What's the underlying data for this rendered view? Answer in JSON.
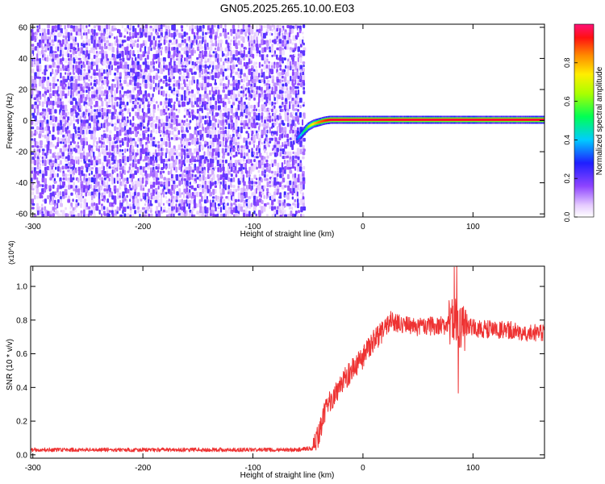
{
  "title": "GN05.2025.265.10.00.E03",
  "chart_data": [
    {
      "type": "heatmap",
      "xlabel": "Height of straight line (km)",
      "ylabel": "Frequency (Hz)",
      "xlim": [
        -302,
        165
      ],
      "ylim": [
        -62,
        62
      ],
      "xticks": [
        -300,
        -200,
        -100,
        0,
        100
      ],
      "xtick_labels": [
        "-300",
        "-200",
        "-100",
        "0",
        "100"
      ],
      "yticks": [
        -60,
        -40,
        -20,
        0,
        20,
        40,
        60
      ],
      "ytick_labels": [
        "-60",
        "-40",
        "-20",
        "0",
        "20",
        "40",
        "60"
      ],
      "colorbar": {
        "label": "Normalized spectral amplitude",
        "range": [
          0,
          1
        ],
        "ticks": [
          0.0,
          0.2,
          0.4,
          0.6,
          0.8
        ],
        "tick_labels": [
          "0.0",
          "0.2",
          "0.4",
          "0.6",
          "0.8"
        ]
      },
      "noise_region_x": [
        -302,
        -55
      ],
      "signal_track": {
        "x": [
          -60,
          -55,
          -50,
          -45,
          -40,
          -35,
          -30,
          -25,
          -20,
          -10,
          0,
          25,
          50,
          75,
          100,
          130,
          165
        ],
        "frequency": [
          -12,
          -8,
          -4,
          -2,
          -1,
          0,
          0.5,
          0.5,
          0.5,
          0.5,
          0.5,
          0.5,
          0.5,
          0.5,
          0.5,
          0.5,
          0.5
        ],
        "amplitude": [
          0.3,
          0.45,
          0.6,
          0.75,
          0.85,
          0.9,
          0.95,
          0.95,
          0.95,
          0.95,
          0.95,
          0.95,
          0.95,
          0.95,
          0.95,
          0.95,
          0.95
        ]
      },
      "grid": false
    },
    {
      "type": "line",
      "xlabel": "Height of straight line (km)",
      "ylabel": "SNR (10 * v/v)",
      "y_multiplier": "(x10^4)",
      "xlim": [
        -302,
        165
      ],
      "ylim": [
        -0.02,
        1.12
      ],
      "xticks": [
        -300,
        -200,
        -100,
        0,
        100
      ],
      "xtick_labels": [
        "-300",
        "-200",
        "-100",
        "0",
        "100"
      ],
      "yticks": [
        0.0,
        0.2,
        0.4,
        0.6,
        0.8,
        1.0
      ],
      "ytick_labels": [
        "0.0",
        "0.2",
        "0.4",
        "0.6",
        "0.8",
        "1.0"
      ],
      "series": [
        {
          "color": "#ee3333",
          "x": [
            -302,
            -250,
            -200,
            -150,
            -100,
            -60,
            -45,
            -40,
            -35,
            -30,
            -20,
            -10,
            0,
            10,
            20,
            25,
            30,
            50,
            75,
            85,
            90,
            100,
            130,
            165
          ],
          "y": [
            0.03,
            0.03,
            0.03,
            0.03,
            0.03,
            0.03,
            0.04,
            0.12,
            0.24,
            0.32,
            0.42,
            0.5,
            0.58,
            0.68,
            0.75,
            0.8,
            0.78,
            0.76,
            0.77,
            0.8,
            0.76,
            0.75,
            0.74,
            0.72
          ]
        }
      ],
      "grid": false
    }
  ]
}
